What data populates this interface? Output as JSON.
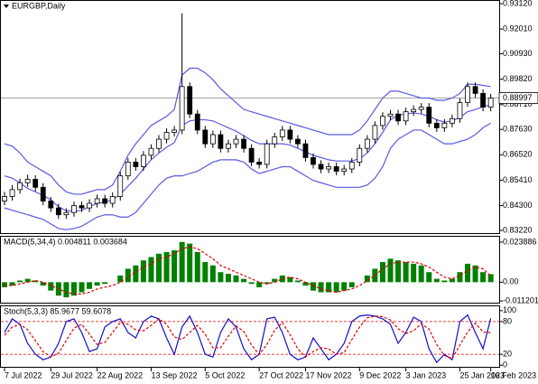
{
  "chart_data": [
    {
      "type": "candlestick",
      "title": "EURGBP,Daily",
      "open": [
        0.845,
        0.847,
        0.85,
        0.853,
        0.8545,
        0.851,
        0.845,
        0.842,
        0.839,
        0.84,
        0.843,
        0.842,
        0.844,
        0.846,
        0.844,
        0.847,
        0.856,
        0.862,
        0.86,
        0.865,
        0.868,
        0.872,
        0.875,
        0.876,
        0.895,
        0.883,
        0.876,
        0.87,
        0.874,
        0.868,
        0.87,
        0.872,
        0.868,
        0.862,
        0.861,
        0.87,
        0.873,
        0.876,
        0.872,
        0.87,
        0.864,
        0.861,
        0.859,
        0.86,
        0.858,
        0.859,
        0.862,
        0.868,
        0.872,
        0.878,
        0.882,
        0.883,
        0.88,
        0.884,
        0.885,
        0.886,
        0.879,
        0.877,
        0.879,
        0.881,
        0.888,
        0.895,
        0.892,
        0.886
      ],
      "high": [
        0.849,
        0.852,
        0.8548,
        0.8565,
        0.8563,
        0.8528,
        0.8468,
        0.8438,
        0.8418,
        0.8448,
        0.8448,
        0.8458,
        0.8478,
        0.8478,
        0.8488,
        0.8578,
        0.8638,
        0.8638,
        0.8668,
        0.8698,
        0.8738,
        0.8768,
        0.8778,
        0.927,
        0.8968,
        0.8848,
        0.8778,
        0.8758,
        0.8758,
        0.8718,
        0.8738,
        0.8738,
        0.8698,
        0.8638,
        0.8718,
        0.8748,
        0.8778,
        0.8778,
        0.8738,
        0.8718,
        0.8658,
        0.8628,
        0.8618,
        0.8618,
        0.8608,
        0.8638,
        0.8698,
        0.8738,
        0.8798,
        0.8838,
        0.8848,
        0.8848,
        0.8858,
        0.8868,
        0.8878,
        0.8878,
        0.8808,
        0.8808,
        0.8828,
        0.8898,
        0.8968,
        0.8968,
        0.8938,
        0.8918
      ],
      "low": [
        0.8432,
        0.8452,
        0.8482,
        0.8512,
        0.8492,
        0.8432,
        0.8402,
        0.8372,
        0.8372,
        0.8382,
        0.8402,
        0.8402,
        0.8422,
        0.8422,
        0.8422,
        0.8452,
        0.8542,
        0.8582,
        0.8582,
        0.8632,
        0.8662,
        0.8702,
        0.8732,
        0.8742,
        0.8812,
        0.8742,
        0.8682,
        0.8682,
        0.8662,
        0.8662,
        0.8682,
        0.8662,
        0.8602,
        0.8592,
        0.8592,
        0.8682,
        0.8712,
        0.8702,
        0.8682,
        0.8622,
        0.8592,
        0.8572,
        0.8572,
        0.8562,
        0.8562,
        0.8572,
        0.8602,
        0.8662,
        0.8702,
        0.8762,
        0.8802,
        0.8782,
        0.8782,
        0.8822,
        0.8832,
        0.8772,
        0.8752,
        0.8752,
        0.8772,
        0.8792,
        0.8862,
        0.8902,
        0.8842,
        0.8842
      ],
      "close": [
        0.847,
        0.85,
        0.853,
        0.8545,
        0.851,
        0.845,
        0.842,
        0.839,
        0.84,
        0.843,
        0.842,
        0.844,
        0.846,
        0.844,
        0.847,
        0.856,
        0.862,
        0.86,
        0.865,
        0.868,
        0.872,
        0.875,
        0.876,
        0.895,
        0.883,
        0.876,
        0.87,
        0.874,
        0.868,
        0.87,
        0.872,
        0.868,
        0.862,
        0.861,
        0.87,
        0.873,
        0.876,
        0.872,
        0.87,
        0.864,
        0.861,
        0.859,
        0.86,
        0.858,
        0.859,
        0.862,
        0.868,
        0.872,
        0.878,
        0.882,
        0.883,
        0.88,
        0.884,
        0.885,
        0.886,
        0.879,
        0.877,
        0.879,
        0.881,
        0.888,
        0.895,
        0.892,
        0.886,
        0.88997
      ],
      "up_color": "#ffffff",
      "down_color": "#000000",
      "bands": {
        "color": "#5a5ae0",
        "upper": [
          0.87,
          0.869,
          0.866,
          0.862,
          0.86,
          0.858,
          0.856,
          0.852,
          0.849,
          0.848,
          0.848,
          0.849,
          0.85,
          0.85,
          0.852,
          0.858,
          0.865,
          0.87,
          0.874,
          0.878,
          0.88,
          0.882,
          0.885,
          0.9,
          0.903,
          0.903,
          0.901,
          0.898,
          0.894,
          0.891,
          0.888,
          0.885,
          0.884,
          0.883,
          0.882,
          0.881,
          0.88,
          0.879,
          0.878,
          0.877,
          0.876,
          0.875,
          0.874,
          0.874,
          0.874,
          0.874,
          0.876,
          0.88,
          0.885,
          0.89,
          0.893,
          0.893,
          0.892,
          0.891,
          0.89,
          0.89,
          0.889,
          0.889,
          0.89,
          0.892,
          0.896,
          0.896,
          0.8955,
          0.895
        ],
        "middle": [
          0.856,
          0.855,
          0.853,
          0.8505,
          0.849,
          0.8475,
          0.8455,
          0.8425,
          0.8408,
          0.8405,
          0.841,
          0.8425,
          0.844,
          0.8445,
          0.8455,
          0.848,
          0.8515,
          0.855,
          0.859,
          0.863,
          0.866,
          0.8685,
          0.8705,
          0.878,
          0.88,
          0.8805,
          0.8805,
          0.88,
          0.8785,
          0.877,
          0.8755,
          0.8735,
          0.8715,
          0.87,
          0.87,
          0.87,
          0.87,
          0.8695,
          0.868,
          0.8665,
          0.865,
          0.864,
          0.863,
          0.8625,
          0.8625,
          0.8625,
          0.8635,
          0.866,
          0.87,
          0.875,
          0.8805,
          0.8825,
          0.883,
          0.8835,
          0.883,
          0.882,
          0.8805,
          0.8795,
          0.88,
          0.8815,
          0.884,
          0.885,
          0.8862,
          0.887
        ],
        "lower": [
          0.842,
          0.841,
          0.84,
          0.839,
          0.838,
          0.837,
          0.835,
          0.833,
          0.8325,
          0.833,
          0.834,
          0.836,
          0.838,
          0.839,
          0.839,
          0.838,
          0.838,
          0.84,
          0.844,
          0.848,
          0.852,
          0.855,
          0.856,
          0.856,
          0.857,
          0.858,
          0.86,
          0.862,
          0.863,
          0.863,
          0.863,
          0.862,
          0.859,
          0.857,
          0.858,
          0.859,
          0.86,
          0.86,
          0.858,
          0.856,
          0.854,
          0.853,
          0.852,
          0.851,
          0.851,
          0.851,
          0.851,
          0.852,
          0.855,
          0.86,
          0.868,
          0.872,
          0.874,
          0.876,
          0.876,
          0.874,
          0.872,
          0.87,
          0.87,
          0.871,
          0.872,
          0.874,
          0.877,
          0.879
        ]
      },
      "current_price": {
        "value": 0.88997,
        "label": "0.88997"
      },
      "ylim": [
        0.831,
        0.9328
      ],
      "yticks": [
        {
          "value": 0.9312,
          "label": "0.93120"
        },
        {
          "value": 0.9201,
          "label": "0.92010"
        },
        {
          "value": 0.9093,
          "label": "0.90930"
        },
        {
          "value": 0.8982,
          "label": "0.89820"
        },
        {
          "value": 0.8871,
          "label": "0.88710"
        },
        {
          "value": 0.8763,
          "label": "0.87630"
        },
        {
          "value": 0.8652,
          "label": "0.86520"
        },
        {
          "value": 0.8541,
          "label": "0.85410"
        },
        {
          "value": 0.843,
          "label": "0.84300"
        },
        {
          "value": 0.8322,
          "label": "0.83220"
        }
      ]
    },
    {
      "type": "macd",
      "title": "MACD(5,34,4) 0.004811 0.003684",
      "series": [
        {
          "color": "#008000",
          "style": "histogram",
          "values": [
            -0.003,
            -0.002,
            0.001,
            0.002,
            0.001,
            -0.002,
            -0.005,
            -0.008,
            -0.009,
            -0.008,
            -0.006,
            -0.004,
            -0.002,
            -0.001,
            0,
            0.004,
            0.008,
            0.01,
            0.013,
            0.015,
            0.017,
            0.018,
            0.019,
            0.024,
            0.023,
            0.018,
            0.012,
            0.01,
            0.006,
            0.005,
            0.004,
            0.002,
            -0.001,
            -0.003,
            -0.001,
            0.002,
            0.004,
            0.003,
            0.001,
            -0.002,
            -0.005,
            -0.006,
            -0.006,
            -0.006,
            -0.005,
            -0.003,
            0,
            0.004,
            0.008,
            0.012,
            0.014,
            0.013,
            0.012,
            0.011,
            0.01,
            0.006,
            0.002,
            0.001,
            0.002,
            0.006,
            0.011,
            0.01,
            0.006,
            0.004811
          ]
        },
        {
          "color": "#e00000",
          "style": "dashed",
          "values": [
            -0.002,
            -0.002,
            -0.001,
            0,
            0.001,
            0,
            -0.002,
            -0.004,
            -0.006,
            -0.007,
            -0.007,
            -0.006,
            -0.004,
            -0.003,
            -0.002,
            0,
            0.003,
            0.006,
            0.009,
            0.011,
            0.014,
            0.015,
            0.017,
            0.02,
            0.021,
            0.02,
            0.017,
            0.014,
            0.01,
            0.008,
            0.006,
            0.004,
            0.002,
            0,
            -0.001,
            0,
            0.002,
            0.003,
            0.002,
            0,
            -0.002,
            -0.004,
            -0.005,
            -0.006,
            -0.005,
            -0.004,
            -0.002,
            0.001,
            0.004,
            0.008,
            0.011,
            0.012,
            0.012,
            0.012,
            0.011,
            0.009,
            0.006,
            0.003,
            0.002,
            0.004,
            0.007,
            0.009,
            0.008,
            0.003684
          ]
        }
      ],
      "ylim": [
        -0.0122,
        0.0271
      ],
      "yticks": [
        0.023886,
        {
          "value": 0,
          "label": "0.00"
        },
        -0.011201
      ]
    },
    {
      "type": "stochastic",
      "title": "Stoch(5,3,3) 85.9677 59.6078",
      "series": [
        {
          "color": "#1010c8",
          "style": "solid",
          "values": [
            60,
            85,
            75,
            40,
            20,
            10,
            15,
            40,
            80,
            85,
            60,
            25,
            30,
            70,
            80,
            85,
            60,
            50,
            80,
            90,
            85,
            50,
            20,
            70,
            90,
            60,
            20,
            15,
            60,
            85,
            70,
            30,
            10,
            20,
            85,
            88,
            60,
            20,
            10,
            15,
            50,
            30,
            10,
            20,
            40,
            80,
            90,
            92,
            90,
            85,
            75,
            40,
            60,
            88,
            80,
            30,
            5,
            20,
            10,
            80,
            92,
            60,
            30,
            85.9677
          ]
        },
        {
          "color": "#e00000",
          "style": "dashed",
          "values": [
            55,
            70,
            75,
            65,
            45,
            25,
            15,
            22,
            45,
            68,
            75,
            57,
            38,
            42,
            60,
            78,
            75,
            65,
            63,
            73,
            85,
            75,
            52,
            47,
            60,
            73,
            57,
            32,
            32,
            53,
            72,
            62,
            37,
            20,
            38,
            64,
            78,
            56,
            30,
            15,
            25,
            32,
            30,
            20,
            23,
            47,
            70,
            87,
            90,
            89,
            83,
            67,
            58,
            63,
            76,
            66,
            38,
            18,
            12,
            37,
            61,
            77,
            61,
            59.6078
          ]
        }
      ],
      "levels": [
        20,
        80
      ],
      "level_color": "#e00000",
      "ylim": [
        -3,
        108
      ],
      "yticks": [
        100,
        80,
        20,
        0
      ],
      "xticks": [
        {
          "value": 0,
          "label": "7 Jul 2022"
        },
        {
          "value": 6,
          "label": "29 Jul 2022"
        },
        {
          "value": 12,
          "label": "22 Aug 2022"
        },
        {
          "value": 19,
          "label": "13 Sep 2022"
        },
        {
          "value": 26,
          "label": "5 Oct 2022"
        },
        {
          "value": 33,
          "label": "27 Oct 2022"
        },
        {
          "value": 39,
          "label": "17 Nov 2022"
        },
        {
          "value": 46,
          "label": "9 Dec 2022"
        },
        {
          "value": 52,
          "label": "3 Jan 2023"
        },
        {
          "value": 59,
          "label": "25 Jan 2023"
        },
        {
          "value": 63,
          "label": "16 Feb 2023"
        }
      ]
    }
  ]
}
